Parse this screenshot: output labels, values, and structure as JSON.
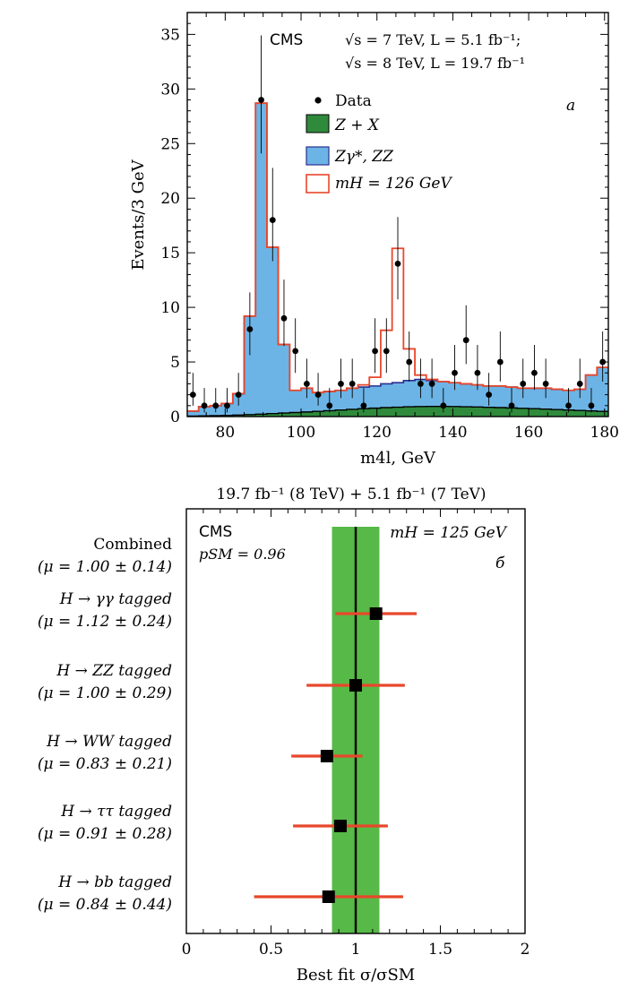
{
  "chart_data": [
    {
      "type": "histogram",
      "panel_label": "a",
      "experiment": "CMS",
      "lumi_line1": "√s = 7 TeV, L = 5.1 fb⁻¹;",
      "lumi_line2": "√s = 8 TeV, L = 19.7 fb⁻¹",
      "xlabel": "m4l, GeV",
      "ylabel": "Events/3 GeV",
      "xlim": [
        70,
        181
      ],
      "ylim": [
        0,
        37
      ],
      "xticks": [
        80,
        100,
        120,
        140,
        160,
        180
      ],
      "yticks": [
        0,
        5,
        10,
        15,
        20,
        25,
        30,
        35
      ],
      "legend": [
        {
          "label": "Data",
          "style": "marker"
        },
        {
          "label": "Z + X",
          "color": "#2f8a3c"
        },
        {
          "label": "Zγ*, ZZ",
          "color": "#6cb4e6"
        },
        {
          "label": "mH = 126 GeV",
          "color": "#e8472b"
        }
      ],
      "bin_edges": [
        70,
        73,
        76,
        79,
        82,
        85,
        88,
        91,
        94,
        97,
        100,
        103,
        106,
        109,
        112,
        115,
        118,
        121,
        124,
        127,
        130,
        133,
        136,
        139,
        142,
        145,
        148,
        151,
        154,
        157,
        160,
        163,
        166,
        169,
        172,
        175,
        178,
        181
      ],
      "zx": [
        0.05,
        0.07,
        0.09,
        0.11,
        0.14,
        0.18,
        0.22,
        0.27,
        0.32,
        0.37,
        0.42,
        0.48,
        0.54,
        0.6,
        0.66,
        0.72,
        0.77,
        0.82,
        0.86,
        0.9,
        0.92,
        0.93,
        0.93,
        0.92,
        0.9,
        0.88,
        0.85,
        0.82,
        0.79,
        0.75,
        0.72,
        0.68,
        0.64,
        0.6,
        0.56,
        0.52,
        0.48
      ],
      "zz_stack": [
        0.5,
        0.9,
        1.0,
        1.2,
        2.1,
        9.2,
        28.7,
        15.5,
        6.6,
        2.4,
        2.6,
        2.2,
        2.3,
        2.4,
        2.6,
        2.7,
        2.8,
        3.0,
        3.1,
        3.3,
        3.4,
        3.3,
        3.2,
        3.1,
        3.0,
        2.9,
        2.8,
        2.8,
        2.7,
        2.6,
        2.6,
        2.6,
        2.5,
        2.4,
        2.5,
        3.8,
        4.5
      ],
      "higgs_stack": [
        0.5,
        0.9,
        1.0,
        1.2,
        2.1,
        9.2,
        28.7,
        15.5,
        6.6,
        2.4,
        2.6,
        2.2,
        2.3,
        2.4,
        2.6,
        2.9,
        3.6,
        7.9,
        15.4,
        6.2,
        3.8,
        3.4,
        3.2,
        3.1,
        3.0,
        2.9,
        2.8,
        2.8,
        2.7,
        2.6,
        2.6,
        2.6,
        2.5,
        2.4,
        2.5,
        3.8,
        4.5
      ],
      "data_points": [
        {
          "x": 71.5,
          "y": 2
        },
        {
          "x": 74.5,
          "y": 1
        },
        {
          "x": 77.5,
          "y": 1
        },
        {
          "x": 80.5,
          "y": 1
        },
        {
          "x": 83.5,
          "y": 2
        },
        {
          "x": 86.5,
          "y": 8
        },
        {
          "x": 89.5,
          "y": 29
        },
        {
          "x": 92.5,
          "y": 18
        },
        {
          "x": 95.5,
          "y": 9
        },
        {
          "x": 98.5,
          "y": 6
        },
        {
          "x": 101.5,
          "y": 3
        },
        {
          "x": 104.5,
          "y": 2
        },
        {
          "x": 107.5,
          "y": 1
        },
        {
          "x": 110.5,
          "y": 3
        },
        {
          "x": 113.5,
          "y": 3
        },
        {
          "x": 116.5,
          "y": 1
        },
        {
          "x": 119.5,
          "y": 6
        },
        {
          "x": 122.5,
          "y": 6
        },
        {
          "x": 125.5,
          "y": 14
        },
        {
          "x": 128.5,
          "y": 5
        },
        {
          "x": 131.5,
          "y": 3
        },
        {
          "x": 134.5,
          "y": 3
        },
        {
          "x": 137.5,
          "y": 1
        },
        {
          "x": 140.5,
          "y": 4
        },
        {
          "x": 143.5,
          "y": 7
        },
        {
          "x": 146.5,
          "y": 4
        },
        {
          "x": 149.5,
          "y": 2
        },
        {
          "x": 152.5,
          "y": 5
        },
        {
          "x": 155.5,
          "y": 1
        },
        {
          "x": 158.5,
          "y": 3
        },
        {
          "x": 161.5,
          "y": 4
        },
        {
          "x": 164.5,
          "y": 3
        },
        {
          "x": 170.5,
          "y": 1
        },
        {
          "x": 173.5,
          "y": 3
        },
        {
          "x": 176.5,
          "y": 1
        },
        {
          "x": 179.5,
          "y": 5
        }
      ]
    },
    {
      "type": "scatter",
      "panel_label": "б",
      "title": "19.7 fb⁻¹ (8 TeV) + 5.1 fb⁻¹ (7 TeV)",
      "experiment": "CMS",
      "p_value": "pSM = 0.96",
      "mass_label": "mH = 125 GeV",
      "xlabel": "Best fit σ/σSM",
      "xlim": [
        0,
        2
      ],
      "xticks": [
        "0",
        "0.5",
        "1",
        "1.5",
        "2"
      ],
      "combined": {
        "name": "Combined",
        "value_label": "(μ = 1.00 ± 0.14)",
        "mu": 1.0,
        "err": 0.14
      },
      "categories": [
        {
          "name": "H → γγ tagged",
          "value_label": "(μ = 1.12 ± 0.24)",
          "mu": 1.12,
          "err": 0.24
        },
        {
          "name": "H → ZZ tagged",
          "value_label": "(μ = 1.00 ± 0.29)",
          "mu": 1.0,
          "err": 0.29
        },
        {
          "name": "H → WW tagged",
          "value_label": "(μ = 0.83 ± 0.21)",
          "mu": 0.83,
          "err": 0.21
        },
        {
          "name": "H → ττ tagged",
          "value_label": "(μ = 0.91 ± 0.28)",
          "mu": 0.91,
          "err": 0.28
        },
        {
          "name": "H → bb tagged",
          "value_label": "(μ = 0.84 ± 0.44)",
          "mu": 0.84,
          "err": 0.44
        }
      ]
    }
  ],
  "colors": {
    "zx": "#2f8a3c",
    "zz": "#6cb4e6",
    "zz_line": "#2b2f8f",
    "higgs": "#e8472b",
    "band": "#57b947",
    "err": "#e8472b"
  }
}
